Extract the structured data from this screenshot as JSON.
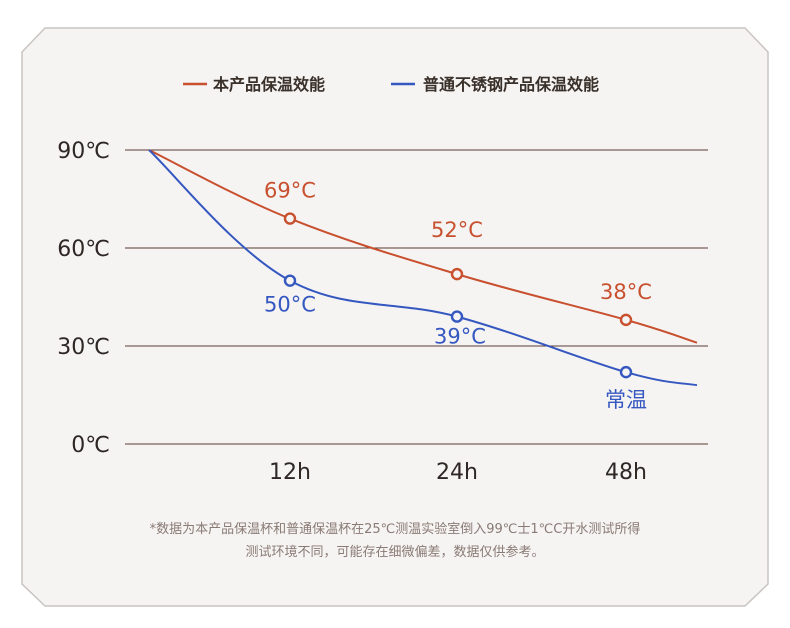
{
  "chart_data": {
    "type": "line",
    "legend_position": "top",
    "grid": true,
    "y_ticks": [
      "90℃",
      "60℃",
      "30℃",
      "0℃"
    ],
    "y_tick_values": [
      90,
      60,
      30,
      0
    ],
    "ylim": [
      0,
      90
    ],
    "categories": [
      "12h",
      "24h",
      "48h"
    ],
    "series": [
      {
        "name": "本产品保温效能",
        "color": "#c8502e",
        "start_value": 90,
        "values": [
          69,
          52,
          38
        ],
        "labels": [
          "69°C",
          "52°C",
          "38°C"
        ],
        "end_value": 31
      },
      {
        "name": "普通不锈钢产品保温效能",
        "color": "#3557c0",
        "start_value": 90,
        "values": [
          50,
          39,
          22
        ],
        "labels": [
          "50°C",
          "39°C",
          "常温"
        ],
        "end_value": 18
      }
    ]
  },
  "footnote": {
    "line1": "*数据为本产品保温杯和普通保温杯在25℃测温实验室倒入99℃士1℃C开水测试所得",
    "line2": "测试环境不同，可能存在细微偏差，数据仅供参考。"
  },
  "colors": {
    "panel_bg": "#f5f4f3",
    "panel_border": "#c9c4c1",
    "grid": "#5a3c33"
  }
}
